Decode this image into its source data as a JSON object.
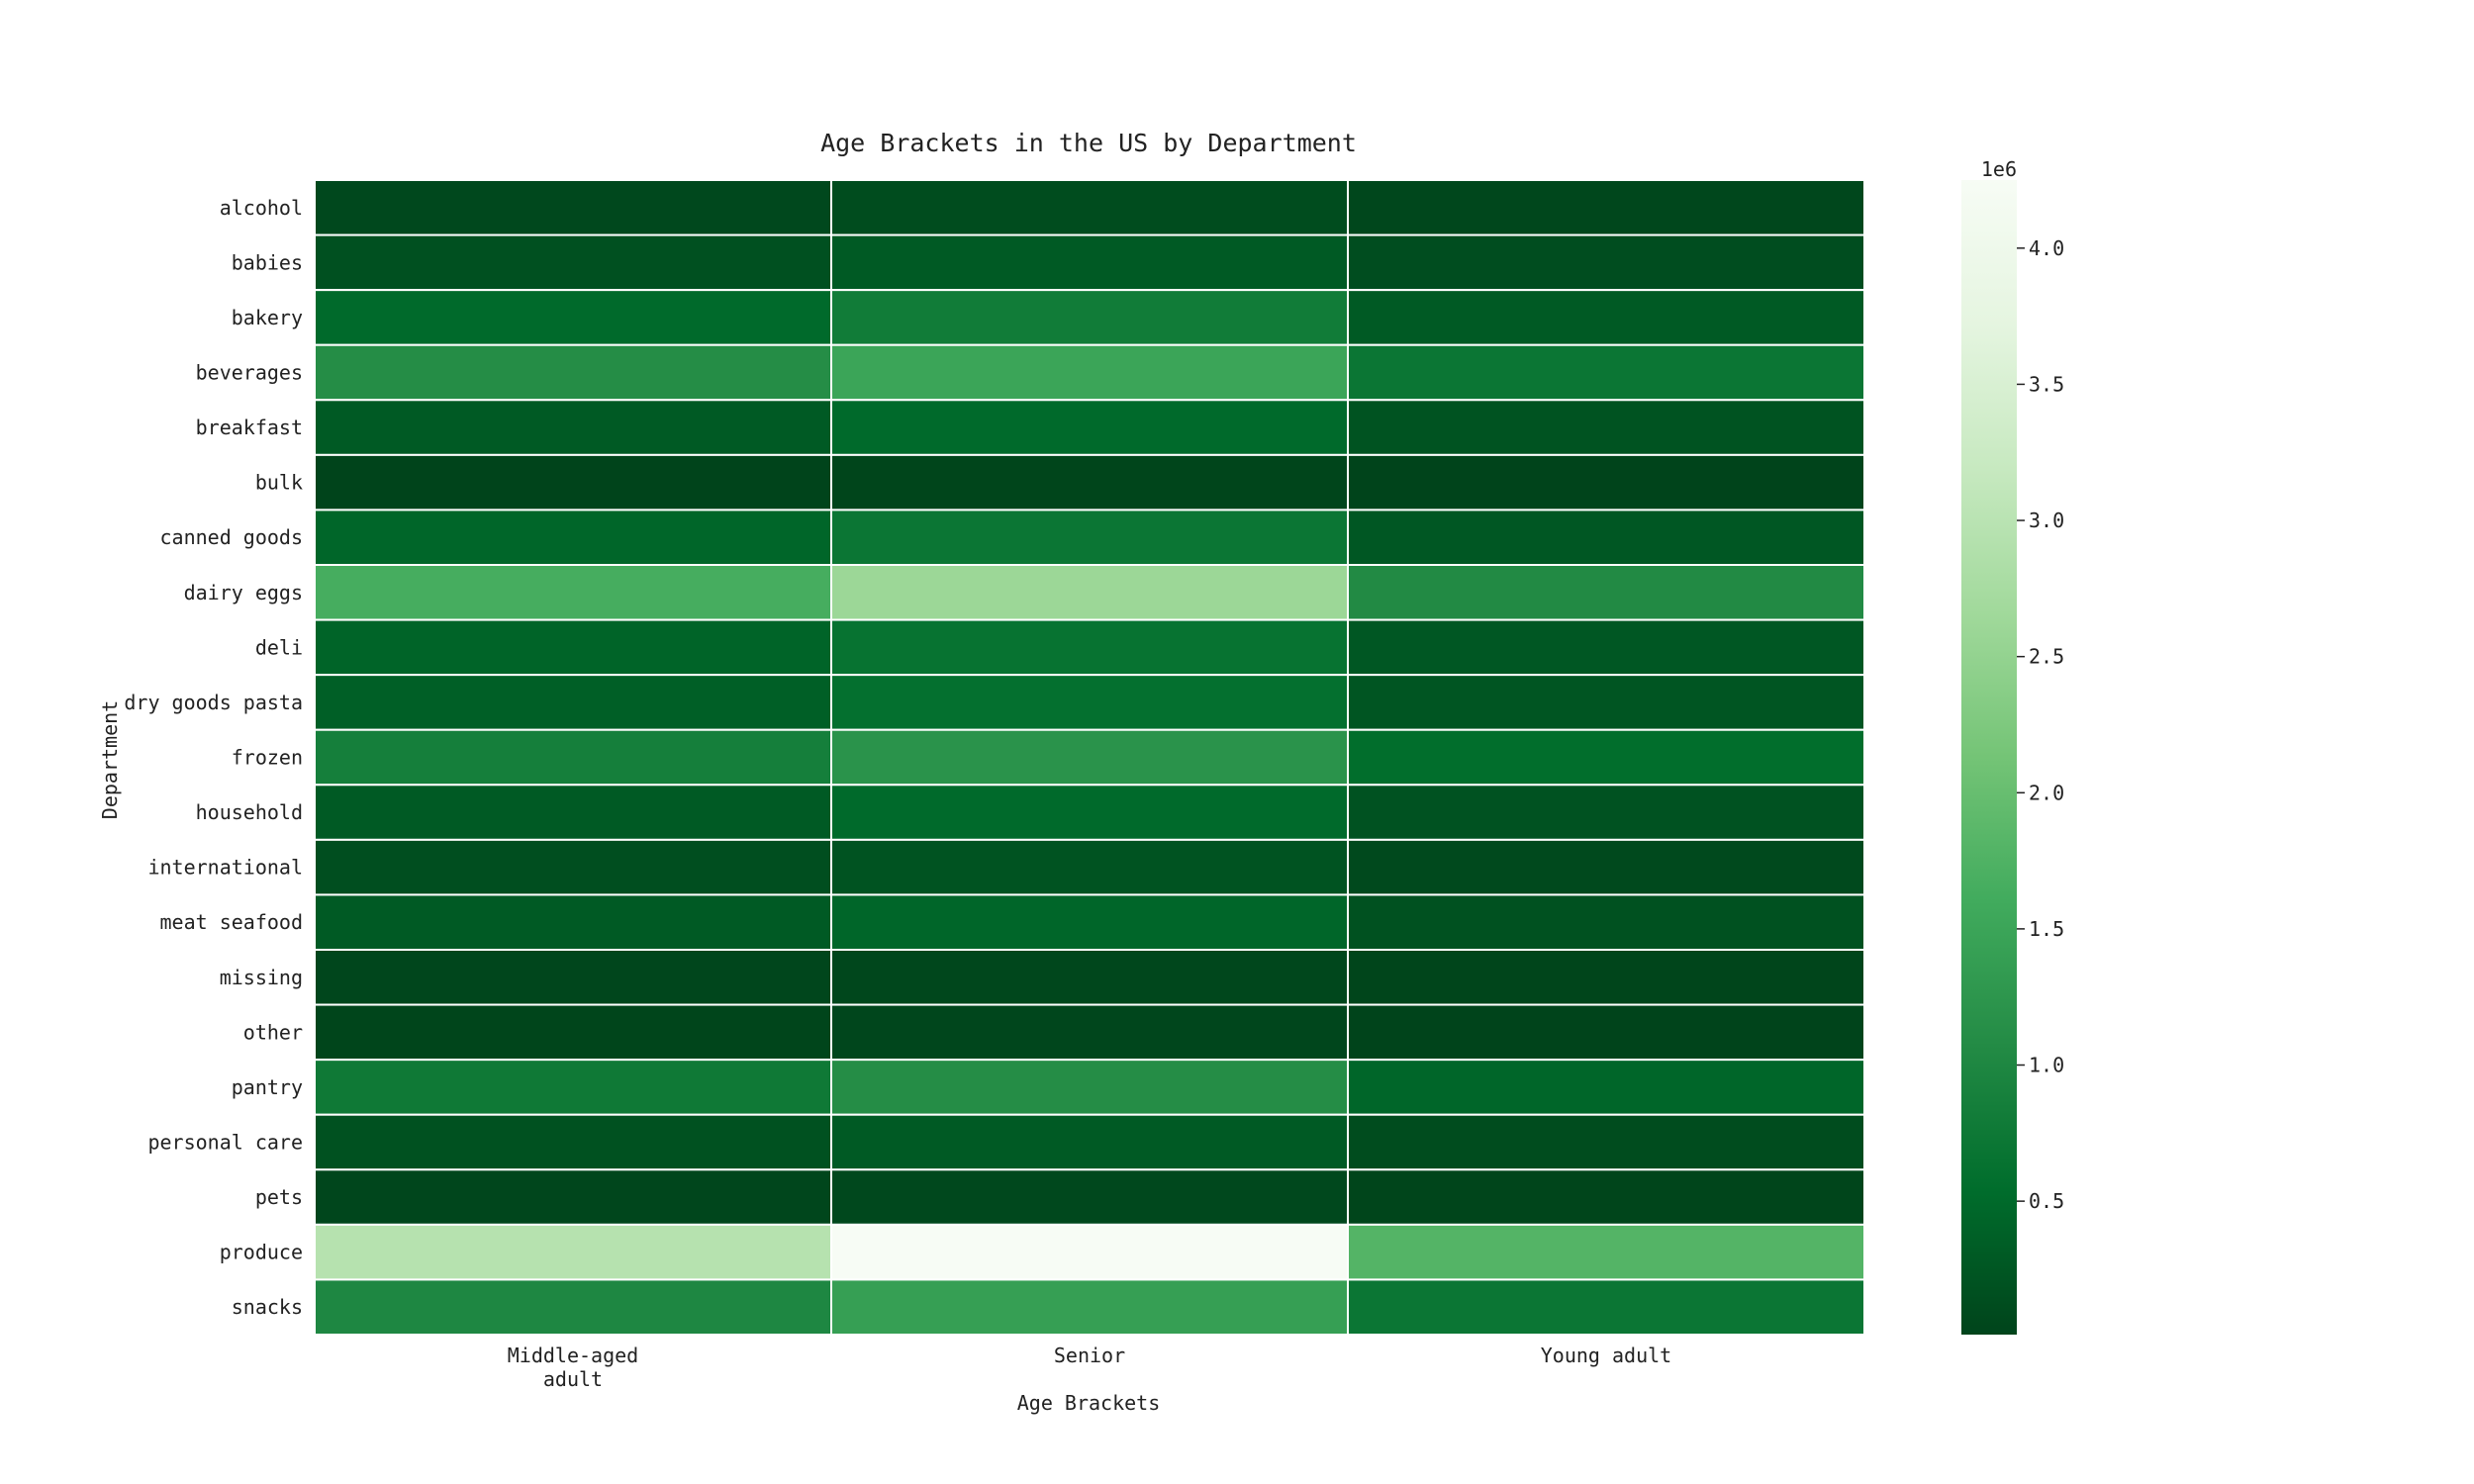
{
  "chart_data": {
    "type": "heatmap",
    "title": "Age Brackets in the US by Department",
    "xlabel": "Age Brackets",
    "ylabel": "Department",
    "x_categories": [
      "Middle-aged adult",
      "Senior",
      "Young adult"
    ],
    "y_categories": [
      "alcohol",
      "babies",
      "bakery",
      "beverages",
      "breakfast",
      "bulk",
      "canned goods",
      "dairy eggs",
      "deli",
      "dry goods pasta",
      "frozen",
      "household",
      "international",
      "meat seafood",
      "missing",
      "other",
      "pantry",
      "personal care",
      "pets",
      "produce",
      "snacks"
    ],
    "values": [
      [
        60000,
        110000,
        50000
      ],
      [
        170000,
        300000,
        120000
      ],
      [
        500000,
        800000,
        300000
      ],
      [
        1100000,
        1500000,
        700000
      ],
      [
        300000,
        500000,
        200000
      ],
      [
        15000,
        25000,
        10000
      ],
      [
        450000,
        700000,
        250000
      ],
      [
        1650000,
        2600000,
        1050000
      ],
      [
        420000,
        650000,
        250000
      ],
      [
        360000,
        600000,
        230000
      ],
      [
        860000,
        1200000,
        550000
      ],
      [
        300000,
        500000,
        190000
      ],
      [
        140000,
        200000,
        80000
      ],
      [
        290000,
        450000,
        180000
      ],
      [
        30000,
        45000,
        20000
      ],
      [
        20000,
        30000,
        10000
      ],
      [
        760000,
        1100000,
        450000
      ],
      [
        180000,
        300000,
        110000
      ],
      [
        40000,
        65000,
        25000
      ],
      [
        2950000,
        4250000,
        1800000
      ],
      [
        1000000,
        1400000,
        700000
      ]
    ],
    "colorscale": {
      "name": "Greens reversed",
      "min": 10000,
      "max": 4250000,
      "stops": [
        "#00441b",
        "#006d2c",
        "#238b45",
        "#41ab5d",
        "#74c476",
        "#a1d99b",
        "#c7e9c0",
        "#e5f5e0",
        "#f7fcf5"
      ]
    },
    "colorbar": {
      "exponent_label": "1e6",
      "tick_values": [
        0.5,
        1.0,
        1.5,
        2.0,
        2.5,
        3.0,
        3.5,
        4.0
      ],
      "tick_labels": [
        "0.5",
        "1.0",
        "1.5",
        "2.0",
        "2.5",
        "3.0",
        "3.5",
        "4.0"
      ]
    },
    "grid": false,
    "legend": "colorbar-right"
  }
}
